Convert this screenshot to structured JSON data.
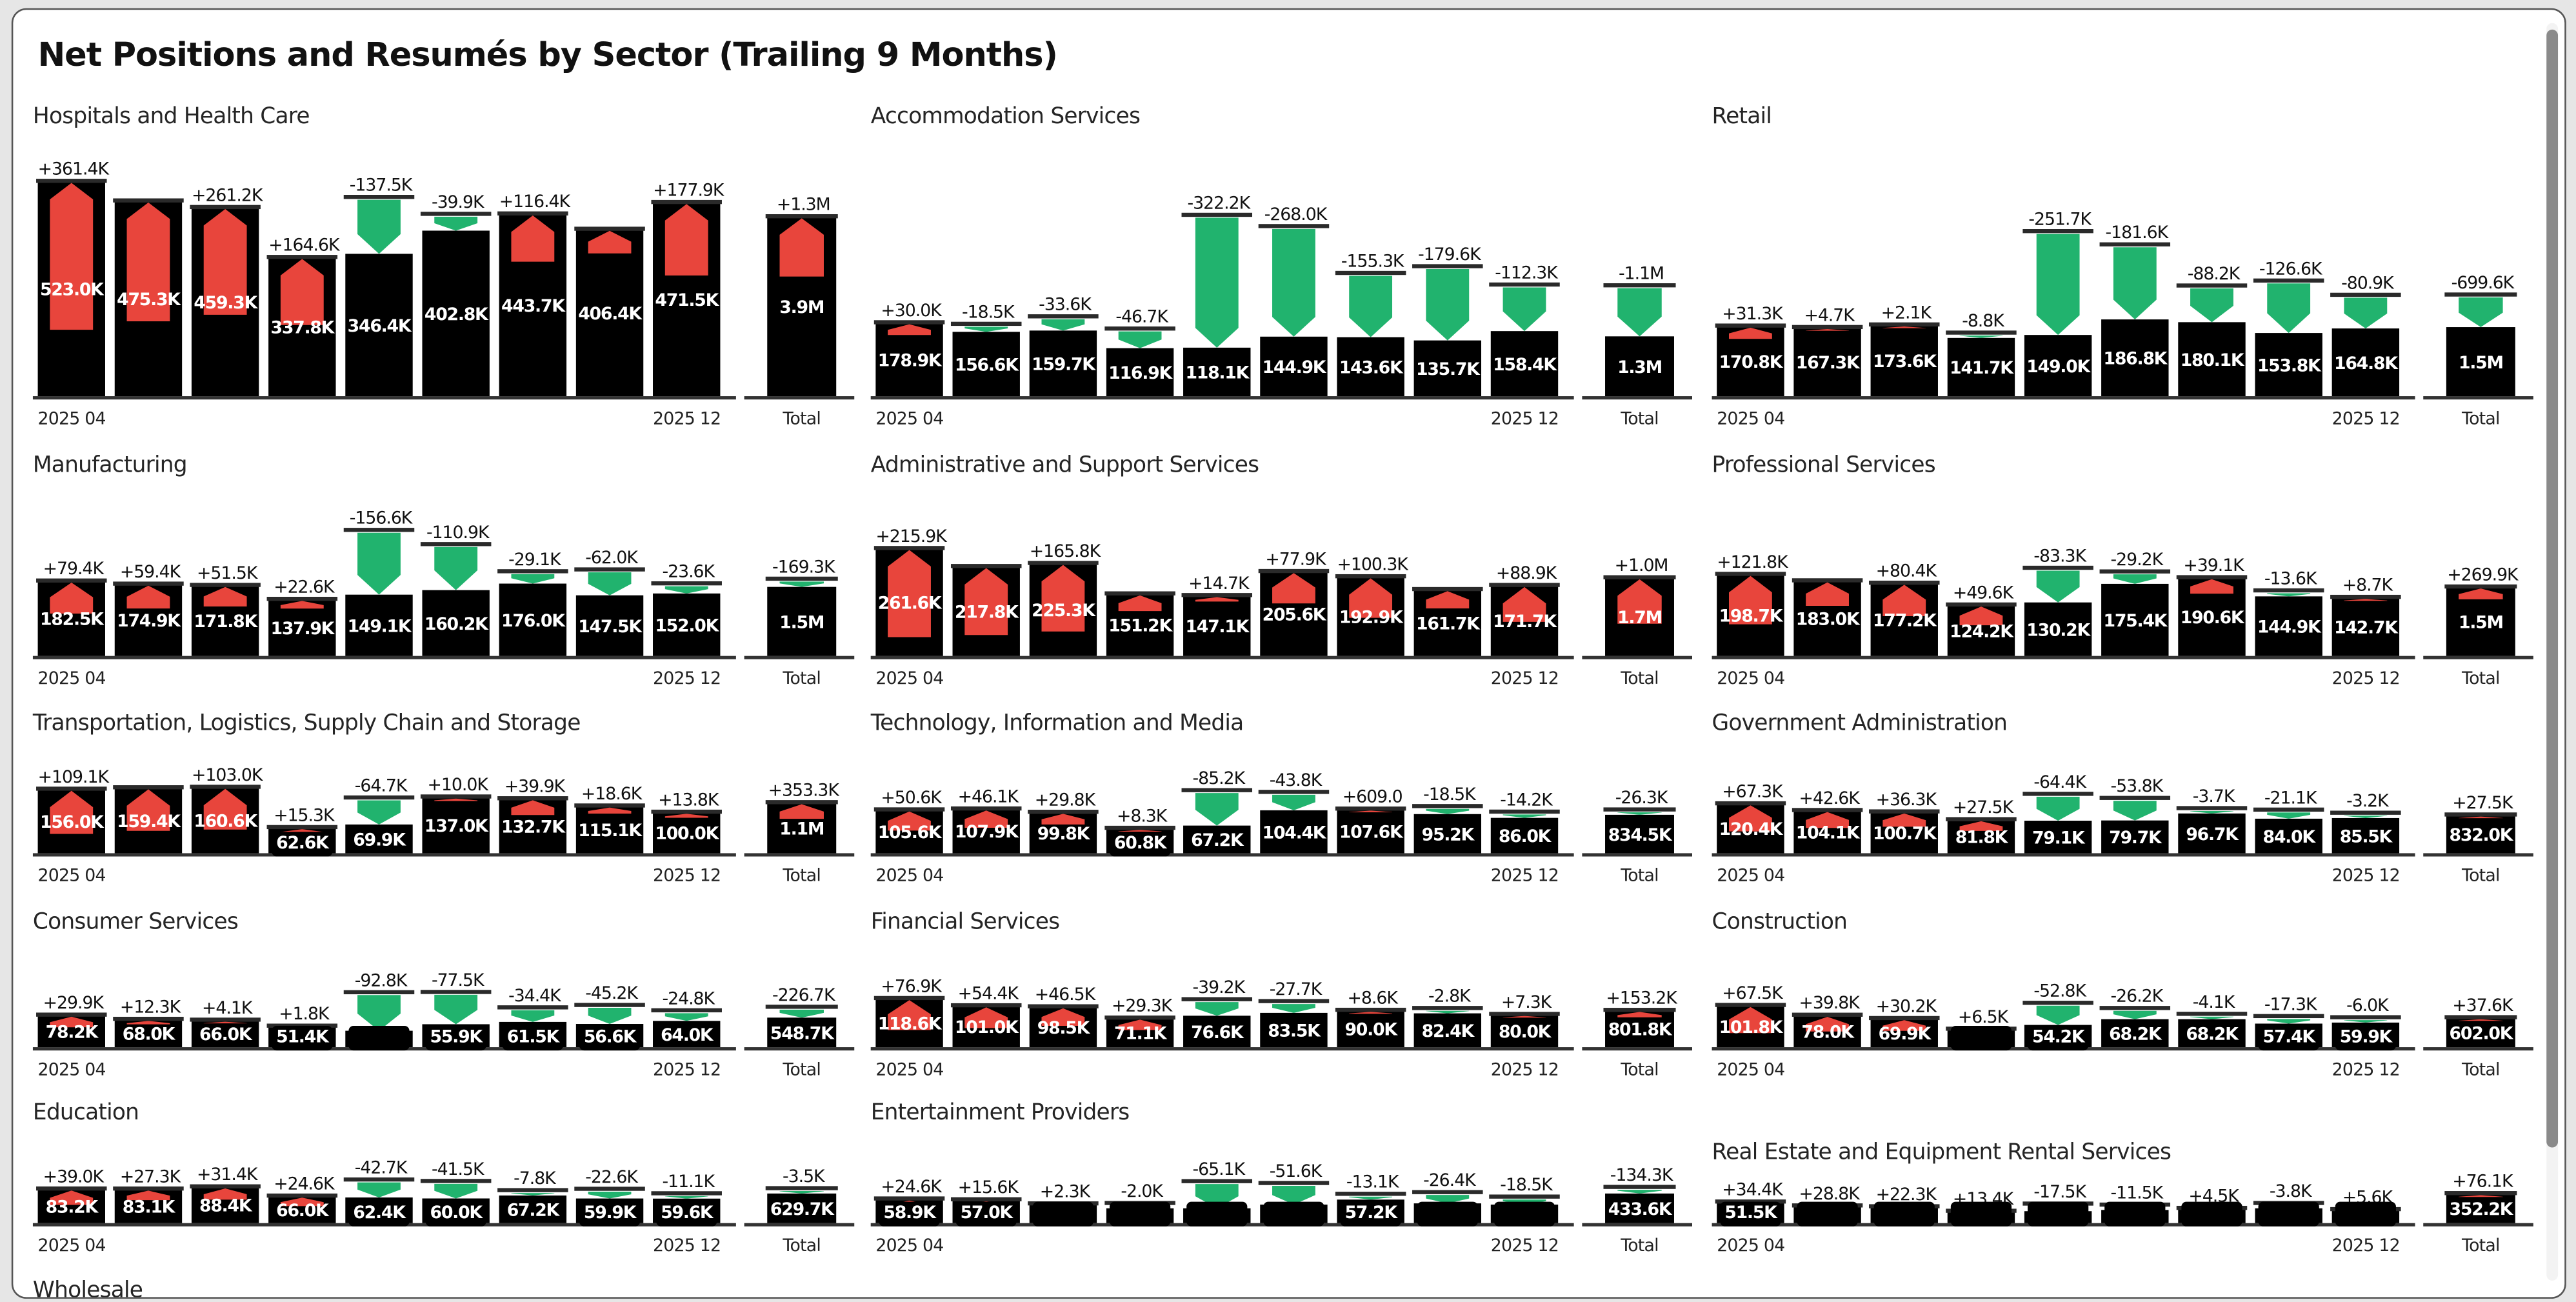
{
  "title": "Net Positions and Resumés by Sector (Trailing 9 Months)",
  "colors": {
    "bar": "#000000",
    "positive_delta": "#e8453c",
    "negative_delta": "#21b36e"
  },
  "x_axis": {
    "start": "2025 04",
    "end": "2025 12",
    "total": "Total"
  },
  "chart_data": {
    "type": "bar",
    "description_note": "",
    "months": [
      "2025 04",
      "2025 05",
      "2025 06",
      "2025 07",
      "2025 08",
      "2025 09",
      "2025 10",
      "2025 11",
      "2025 12"
    ]
  },
  "sectors": [
    {
      "title": "Hospitals and Health Care",
      "base_values": [
        523.0,
        475.3,
        459.3,
        337.8,
        346.4,
        402.8,
        443.7,
        406.4,
        471.5
      ],
      "base_labels": [
        "523.0K",
        "475.3K",
        "459.3K",
        "337.8K",
        "346.4K",
        "402.8K",
        "443.7K",
        "406.4K",
        "471.5K"
      ],
      "delta_values": [
        361.4,
        293,
        261.2,
        164.6,
        -137.5,
        -39.9,
        116.4,
        59,
        177.9
      ],
      "delta_labels": [
        "+361.4K",
        "",
        "+261.2K",
        "+164.6K",
        "-137.5K",
        "-39.9K",
        "+116.4K",
        "",
        "+177.9K"
      ],
      "total": {
        "value": 3900,
        "label": "3.9M",
        "delta": 1300,
        "delta_label": "+1.3M"
      }
    },
    {
      "title": "Accommodation Services",
      "base_values": [
        178.9,
        156.6,
        159.7,
        116.9,
        118.1,
        144.9,
        143.6,
        135.7,
        158.4
      ],
      "base_labels": [
        "178.9K",
        "156.6K",
        "159.7K",
        "116.9K",
        "118.1K",
        "144.9K",
        "143.6K",
        "135.7K",
        "158.4K"
      ],
      "delta_values": [
        30.0,
        -18.5,
        -33.6,
        -46.7,
        -322.2,
        -268.0,
        -155.3,
        -179.6,
        -112.3
      ],
      "delta_labels": [
        "+30.0K",
        "-18.5K",
        "-33.6K",
        "-46.7K",
        "-322.2K",
        "-268.0K",
        "-155.3K",
        "-179.6K",
        "-112.3K"
      ],
      "total": {
        "value": 1300,
        "label": "1.3M",
        "delta": -1100,
        "delta_label": "-1.1M"
      }
    },
    {
      "title": "Retail",
      "base_values": [
        170.8,
        167.3,
        173.6,
        141.7,
        149.0,
        186.8,
        180.1,
        153.8,
        164.8
      ],
      "base_labels": [
        "170.8K",
        "167.3K",
        "173.6K",
        "141.7K",
        "149.0K",
        "186.8K",
        "180.1K",
        "153.8K",
        "164.8K"
      ],
      "delta_values": [
        31.3,
        4.7,
        2.1,
        -8.8,
        -251.7,
        -181.6,
        -88.2,
        -126.6,
        -80.9
      ],
      "delta_labels": [
        "+31.3K",
        "+4.7K",
        "+2.1K",
        "-8.8K",
        "-251.7K",
        "-181.6K",
        "-88.2K",
        "-126.6K",
        "-80.9K"
      ],
      "total": {
        "value": 1500,
        "label": "1.5M",
        "delta": -699.6,
        "delta_label": "-699.6K"
      }
    },
    {
      "title": "Manufacturing",
      "base_values": [
        182.5,
        174.9,
        171.8,
        137.9,
        149.1,
        160.2,
        176.0,
        147.5,
        152.0
      ],
      "base_labels": [
        "182.5K",
        "174.9K",
        "171.8K",
        "137.9K",
        "149.1K",
        "160.2K",
        "176.0K",
        "147.5K",
        "152.0K"
      ],
      "delta_values": [
        79.4,
        59.4,
        51.5,
        22.6,
        -156.6,
        -110.9,
        -29.1,
        -62.0,
        -23.6
      ],
      "delta_labels": [
        "+79.4K",
        "+59.4K",
        "+51.5K",
        "+22.6K",
        "-156.6K",
        "-110.9K",
        "-29.1K",
        "-62.0K",
        "-23.6K"
      ],
      "total": {
        "value": 1500,
        "label": "1.5M",
        "delta": -169.3,
        "delta_label": "-169.3K"
      }
    },
    {
      "title": "Administrative and Support Services",
      "base_values": [
        261.6,
        217.8,
        225.3,
        151.2,
        147.1,
        205.6,
        192.9,
        161.7,
        171.7
      ],
      "base_labels": [
        "261.6K",
        "217.8K",
        "225.3K",
        "151.2K",
        "147.1K",
        "205.6K",
        "192.9K",
        "161.7K",
        "171.7K"
      ],
      "delta_values": [
        215.9,
        167,
        165.8,
        42,
        14.7,
        77.9,
        100.3,
        46,
        88.9
      ],
      "delta_labels": [
        "+215.9K",
        "",
        "+165.8K",
        "",
        "+14.7K",
        "+77.9K",
        "+100.3K",
        "",
        "+88.9K"
      ],
      "total": {
        "value": 1700,
        "label": "1.7M",
        "delta": 1000,
        "delta_label": "+1.0M"
      }
    },
    {
      "title": "Professional Services",
      "base_values": [
        198.7,
        183.0,
        177.2,
        124.2,
        130.2,
        175.4,
        190.6,
        144.9,
        142.7
      ],
      "base_labels": [
        "198.7K",
        "183.0K",
        "177.2K",
        "124.2K",
        "130.2K",
        "175.4K",
        "190.6K",
        "144.9K",
        "142.7K"
      ],
      "delta_values": [
        121.8,
        61,
        80.4,
        49.6,
        -83.3,
        -29.2,
        39.1,
        -13.6,
        8.7
      ],
      "delta_labels": [
        "+121.8K",
        "",
        "+80.4K",
        "+49.6K",
        "-83.3K",
        "-29.2K",
        "+39.1K",
        "-13.6K",
        "+8.7K"
      ],
      "total": {
        "value": 1500,
        "label": "1.5M",
        "delta": 269.9,
        "delta_label": "+269.9K"
      }
    },
    {
      "title": "Transportation, Logistics, Supply Chain and Storage",
      "base_values": [
        156.0,
        159.4,
        160.6,
        62.6,
        69.9,
        137.0,
        132.7,
        115.1,
        100.0
      ],
      "base_labels": [
        "156.0K",
        "159.4K",
        "160.6K",
        "62.6K",
        "69.9K",
        "137.0K",
        "132.7K",
        "115.1K",
        "100.0K"
      ],
      "delta_values": [
        109.1,
        105,
        103.0,
        15.3,
        -64.7,
        10.0,
        39.9,
        18.6,
        13.8
      ],
      "delta_labels": [
        "+109.1K",
        "",
        "+103.0K",
        "+15.3K",
        "-64.7K",
        "+10.0K",
        "+39.9K",
        "+18.6K",
        "+13.8K"
      ],
      "total": {
        "value": 1100,
        "label": "1.1M",
        "delta": 353.3,
        "delta_label": "+353.3K"
      }
    },
    {
      "title": "Technology, Information and Media",
      "base_values": [
        105.6,
        107.9,
        99.8,
        60.8,
        67.2,
        104.4,
        107.6,
        95.2,
        86.0
      ],
      "base_labels": [
        "105.6K",
        "107.9K",
        "99.8K",
        "60.8K",
        "67.2K",
        "104.4K",
        "107.6K",
        "95.2K",
        "86.0K"
      ],
      "delta_values": [
        50.6,
        46.1,
        29.8,
        8.3,
        -85.2,
        -43.8,
        0.609,
        -18.5,
        -14.2
      ],
      "delta_labels": [
        "+50.6K",
        "+46.1K",
        "+29.8K",
        "+8.3K",
        "-85.2K",
        "-43.8K",
        "+609.0",
        "-18.5K",
        "-14.2K"
      ],
      "total": {
        "value": 834.5,
        "label": "834.5K",
        "delta": -26.3,
        "delta_label": "-26.3K"
      }
    },
    {
      "title": "Government Administration",
      "base_values": [
        120.4,
        104.1,
        100.7,
        81.8,
        79.1,
        79.7,
        96.7,
        84.0,
        85.5
      ],
      "base_labels": [
        "120.4K",
        "104.1K",
        "100.7K",
        "81.8K",
        "79.1K",
        "79.7K",
        "96.7K",
        "84.0K",
        "85.5K"
      ],
      "delta_values": [
        67.3,
        42.6,
        36.3,
        27.5,
        -64.4,
        -53.8,
        -3.7,
        -21.1,
        -3.2
      ],
      "delta_labels": [
        "+67.3K",
        "+42.6K",
        "+36.3K",
        "+27.5K",
        "-64.4K",
        "-53.8K",
        "-3.7K",
        "-21.1K",
        "-3.2K"
      ],
      "total": {
        "value": 832.0,
        "label": "832.0K",
        "delta": 27.5,
        "delta_label": "+27.5K"
      }
    },
    {
      "title": "Consumer Services",
      "base_values": [
        78.2,
        68.0,
        66.0,
        51.4,
        40,
        55.9,
        61.5,
        56.6,
        64.0
      ],
      "base_labels": [
        "78.2K",
        "68.0K",
        "66.0K",
        "51.4K",
        "",
        "55.9K",
        "61.5K",
        "56.6K",
        "64.0K"
      ],
      "delta_values": [
        29.9,
        12.3,
        4.1,
        1.8,
        -92.8,
        -77.5,
        -34.4,
        -45.2,
        -24.8
      ],
      "delta_labels": [
        "+29.9K",
        "+12.3K",
        "+4.1K",
        "+1.8K",
        "-92.8K",
        "-77.5K",
        "-34.4K",
        "-45.2K",
        "-24.8K"
      ],
      "total": {
        "value": 548.7,
        "label": "548.7K",
        "delta": -226.7,
        "delta_label": "-226.7K"
      }
    },
    {
      "title": "Financial Services",
      "base_values": [
        118.6,
        101.0,
        98.5,
        71.1,
        76.6,
        83.5,
        90.0,
        82.4,
        80.0
      ],
      "base_labels": [
        "118.6K",
        "101.0K",
        "98.5K",
        "71.1K",
        "76.6K",
        "83.5K",
        "90.0K",
        "82.4K",
        "80.0K"
      ],
      "delta_values": [
        76.9,
        54.4,
        46.5,
        29.3,
        -39.2,
        -27.7,
        8.6,
        -2.8,
        7.3
      ],
      "delta_labels": [
        "+76.9K",
        "+54.4K",
        "+46.5K",
        "+29.3K",
        "-39.2K",
        "-27.7K",
        "+8.6K",
        "-2.8K",
        "+7.3K"
      ],
      "total": {
        "value": 801.8,
        "label": "801.8K",
        "delta": 153.2,
        "delta_label": "+153.2K"
      }
    },
    {
      "title": "Construction",
      "base_values": [
        101.8,
        78.0,
        69.9,
        44,
        54.2,
        68.2,
        68.2,
        57.4,
        59.9
      ],
      "base_labels": [
        "101.8K",
        "78.0K",
        "69.9K",
        "",
        "54.2K",
        "68.2K",
        "68.2K",
        "57.4K",
        "59.9K"
      ],
      "delta_values": [
        67.5,
        39.8,
        30.2,
        6.5,
        -52.8,
        -26.2,
        -4.1,
        -17.3,
        -6.0
      ],
      "delta_labels": [
        "+67.5K",
        "+39.8K",
        "+30.2K",
        "+6.5K",
        "-52.8K",
        "-26.2K",
        "-4.1K",
        "-17.3K",
        "-6.0K"
      ],
      "total": {
        "value": 602.0,
        "label": "602.0K",
        "delta": 37.6,
        "delta_label": "+37.6K"
      }
    },
    {
      "title": "Education",
      "base_values": [
        83.2,
        83.1,
        88.4,
        66.0,
        62.4,
        60.0,
        67.2,
        59.9,
        59.6
      ],
      "base_labels": [
        "83.2K",
        "83.1K",
        "88.4K",
        "66.0K",
        "62.4K",
        "60.0K",
        "67.2K",
        "59.9K",
        "59.6K"
      ],
      "delta_values": [
        39.0,
        27.3,
        31.4,
        24.6,
        -42.7,
        -41.5,
        -7.8,
        -22.6,
        -11.1
      ],
      "delta_labels": [
        "+39.0K",
        "+27.3K",
        "+31.4K",
        "+24.6K",
        "-42.7K",
        "-41.5K",
        "-7.8K",
        "-22.6K",
        "-11.1K"
      ],
      "total": {
        "value": 629.7,
        "label": "629.7K",
        "delta": -3.5,
        "delta_label": "-3.5K"
      }
    },
    {
      "title": "Entertainment Providers",
      "base_values": [
        58.9,
        57.0,
        47,
        36,
        36,
        45,
        57.2,
        48,
        45
      ],
      "base_labels": [
        "58.9K",
        "57.0K",
        "",
        "",
        "",
        "",
        "57.2K",
        "",
        ""
      ],
      "delta_values": [
        24.6,
        15.6,
        2.3,
        -2.0,
        -65.1,
        -51.6,
        -13.1,
        -26.4,
        -18.5
      ],
      "delta_labels": [
        "+24.6K",
        "+15.6K",
        "+2.3K",
        "-2.0K",
        "-65.1K",
        "-51.6K",
        "-13.1K",
        "-26.4K",
        "-18.5K"
      ],
      "total": {
        "value": 433.6,
        "label": "433.6K",
        "delta": -134.3,
        "delta_label": "-134.3K"
      }
    },
    {
      "title": "Real Estate and Equipment Rental Services",
      "base_values": [
        51.5,
        42,
        40,
        29,
        29,
        32,
        36,
        36,
        33
      ],
      "base_labels": [
        "51.5K",
        "",
        "",
        "",
        "",
        "",
        "",
        "",
        ""
      ],
      "delta_values": [
        34.4,
        28.8,
        22.3,
        13.4,
        -17.5,
        -11.5,
        4.5,
        -3.8,
        5.6
      ],
      "delta_labels": [
        "+34.4K",
        "+28.8K",
        "+22.3K",
        "+13.4K",
        "-17.5K",
        "-11.5K",
        "+4.5K",
        "-3.8K",
        "+5.6K"
      ],
      "total": {
        "value": 352.2,
        "label": "352.2K",
        "delta": 76.1,
        "delta_label": "+76.1K"
      }
    },
    {
      "title": "Wholesale"
    }
  ]
}
